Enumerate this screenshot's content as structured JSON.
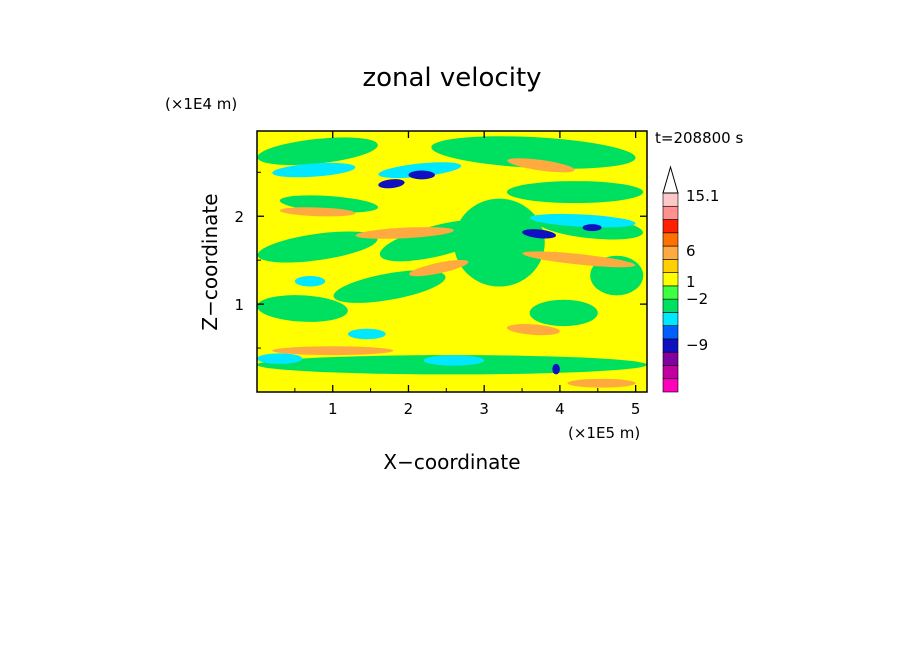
{
  "chart_data": {
    "type": "heatmap",
    "title": "zonal velocity",
    "xlabel": "X−coordinate",
    "ylabel": "Z−coordinate",
    "x_unit": "(×1E5 m)",
    "y_unit": "(×1E4 m)",
    "time_label": "t=208800 s",
    "xlim": [
      0,
      5.15
    ],
    "ylim": [
      0,
      2.97
    ],
    "x_ticks": [
      1,
      2,
      3,
      4,
      5
    ],
    "y_ticks": [
      1,
      2
    ],
    "colorbar": {
      "labels": [
        {
          "text": "15.1",
          "value": 15.1
        },
        {
          "text": "6",
          "value": 6
        },
        {
          "text": "1",
          "value": 1
        },
        {
          "text": "−2",
          "value": -2
        },
        {
          "text": "−9",
          "value": -9
        }
      ],
      "colors": [
        "#ff00bb",
        "#c000a0",
        "#8000a0",
        "#1010c0",
        "#0060ff",
        "#00e8ff",
        "#00e060",
        "#40ff40",
        "#ffff00",
        "#ffd000",
        "#ffaa40",
        "#ff7000",
        "#ff2000",
        "#ff9090",
        "#ffc8c8"
      ],
      "extend_max_color": "#ffffff"
    }
  }
}
